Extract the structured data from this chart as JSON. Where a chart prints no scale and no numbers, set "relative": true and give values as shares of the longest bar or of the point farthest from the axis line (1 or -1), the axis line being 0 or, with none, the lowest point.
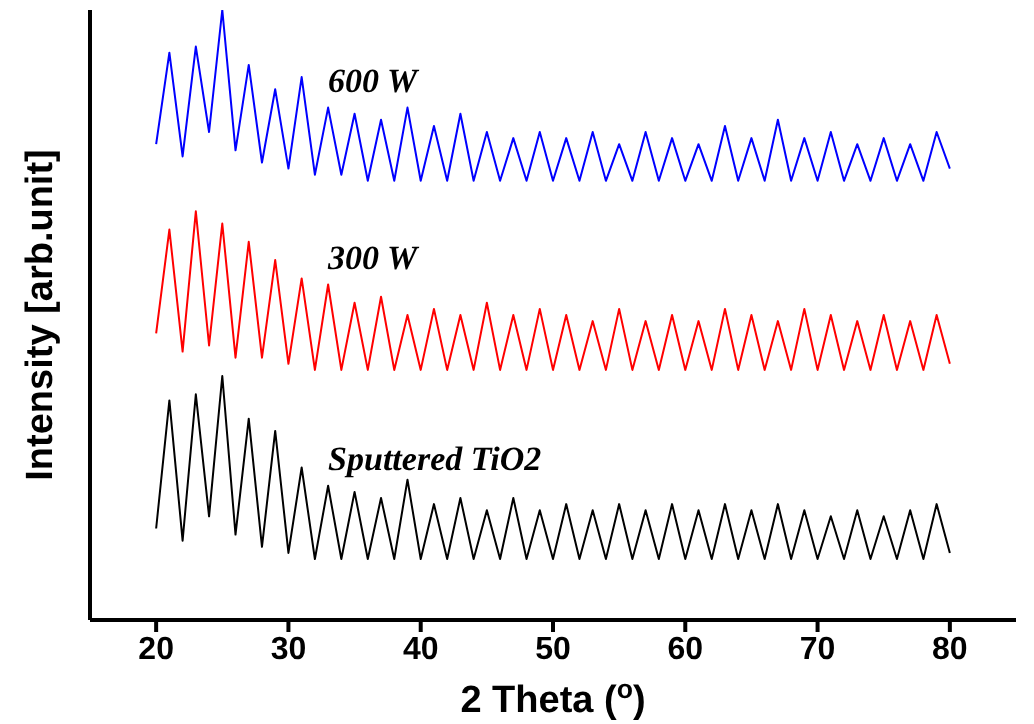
{
  "chart_data": {
    "type": "line",
    "xlabel": "2 Theta ($^{o}$)",
    "ylabel": "Intensity [arb.unit]",
    "relative": true,
    "tick_labels": "x",
    "xlim": [
      15,
      85
    ],
    "xticks": [
      20,
      30,
      40,
      50,
      60,
      70,
      80
    ],
    "x": [
      20,
      21,
      22,
      23,
      24,
      25,
      26,
      27,
      28,
      29,
      30,
      31,
      32,
      33,
      34,
      35,
      36,
      37,
      38,
      39,
      40,
      41,
      42,
      43,
      44,
      45,
      46,
      47,
      48,
      49,
      50,
      51,
      52,
      53,
      54,
      55,
      56,
      57,
      58,
      59,
      60,
      61,
      62,
      63,
      64,
      65,
      66,
      67,
      68,
      69,
      70,
      71,
      72,
      73,
      74,
      75,
      76,
      77,
      78,
      79,
      80
    ],
    "series": [
      {
        "name": "600 W",
        "color": "#0000ff",
        "values": [
          0.78,
          0.93,
          0.76,
          0.94,
          0.8,
          1.0,
          0.77,
          0.91,
          0.75,
          0.87,
          0.74,
          0.89,
          0.73,
          0.84,
          0.73,
          0.83,
          0.72,
          0.82,
          0.72,
          0.84,
          0.72,
          0.81,
          0.72,
          0.83,
          0.72,
          0.8,
          0.72,
          0.79,
          0.72,
          0.8,
          0.72,
          0.79,
          0.72,
          0.8,
          0.72,
          0.78,
          0.72,
          0.8,
          0.72,
          0.79,
          0.72,
          0.78,
          0.72,
          0.81,
          0.72,
          0.79,
          0.72,
          0.82,
          0.72,
          0.79,
          0.72,
          0.8,
          0.72,
          0.78,
          0.72,
          0.79,
          0.72,
          0.78,
          0.72,
          0.8,
          0.74
        ]
      },
      {
        "name": "300 W",
        "color": "#ff0000",
        "values": [
          0.47,
          0.64,
          0.44,
          0.67,
          0.45,
          0.65,
          0.43,
          0.62,
          0.43,
          0.59,
          0.42,
          0.56,
          0.41,
          0.55,
          0.41,
          0.52,
          0.41,
          0.53,
          0.41,
          0.5,
          0.41,
          0.51,
          0.41,
          0.5,
          0.41,
          0.52,
          0.41,
          0.5,
          0.41,
          0.51,
          0.41,
          0.5,
          0.41,
          0.49,
          0.41,
          0.51,
          0.41,
          0.49,
          0.41,
          0.5,
          0.41,
          0.49,
          0.41,
          0.51,
          0.41,
          0.5,
          0.41,
          0.49,
          0.41,
          0.51,
          0.41,
          0.5,
          0.41,
          0.49,
          0.41,
          0.5,
          0.41,
          0.49,
          0.41,
          0.5,
          0.42
        ]
      },
      {
        "name": "Sputtered TiO2",
        "color": "#000000",
        "values": [
          0.15,
          0.36,
          0.13,
          0.37,
          0.17,
          0.4,
          0.14,
          0.33,
          0.12,
          0.31,
          0.11,
          0.25,
          0.1,
          0.22,
          0.1,
          0.21,
          0.1,
          0.2,
          0.1,
          0.23,
          0.1,
          0.19,
          0.1,
          0.2,
          0.1,
          0.18,
          0.1,
          0.2,
          0.1,
          0.18,
          0.1,
          0.19,
          0.1,
          0.18,
          0.1,
          0.19,
          0.1,
          0.18,
          0.1,
          0.19,
          0.1,
          0.18,
          0.1,
          0.19,
          0.1,
          0.18,
          0.1,
          0.19,
          0.1,
          0.18,
          0.1,
          0.17,
          0.1,
          0.18,
          0.1,
          0.17,
          0.1,
          0.18,
          0.1,
          0.19,
          0.11
        ]
      }
    ]
  }
}
